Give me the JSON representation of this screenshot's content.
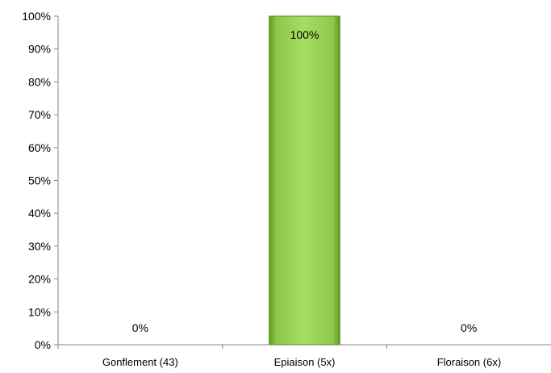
{
  "chart_data": {
    "type": "bar",
    "title": "",
    "xlabel": "",
    "ylabel": "",
    "categories": [
      "Gonflement (43)",
      "Epiaison (5x)",
      "Floraison (6x)"
    ],
    "values": [
      0,
      100,
      0
    ],
    "value_labels": [
      "0%",
      "100%",
      "0%"
    ],
    "y_ticks": [
      "0%",
      "10%",
      "20%",
      "30%",
      "40%",
      "50%",
      "60%",
      "70%",
      "80%",
      "90%",
      "100%"
    ],
    "ylim": [
      0,
      100
    ],
    "legend": "none",
    "grid": false,
    "bar_color": "#92D050"
  }
}
